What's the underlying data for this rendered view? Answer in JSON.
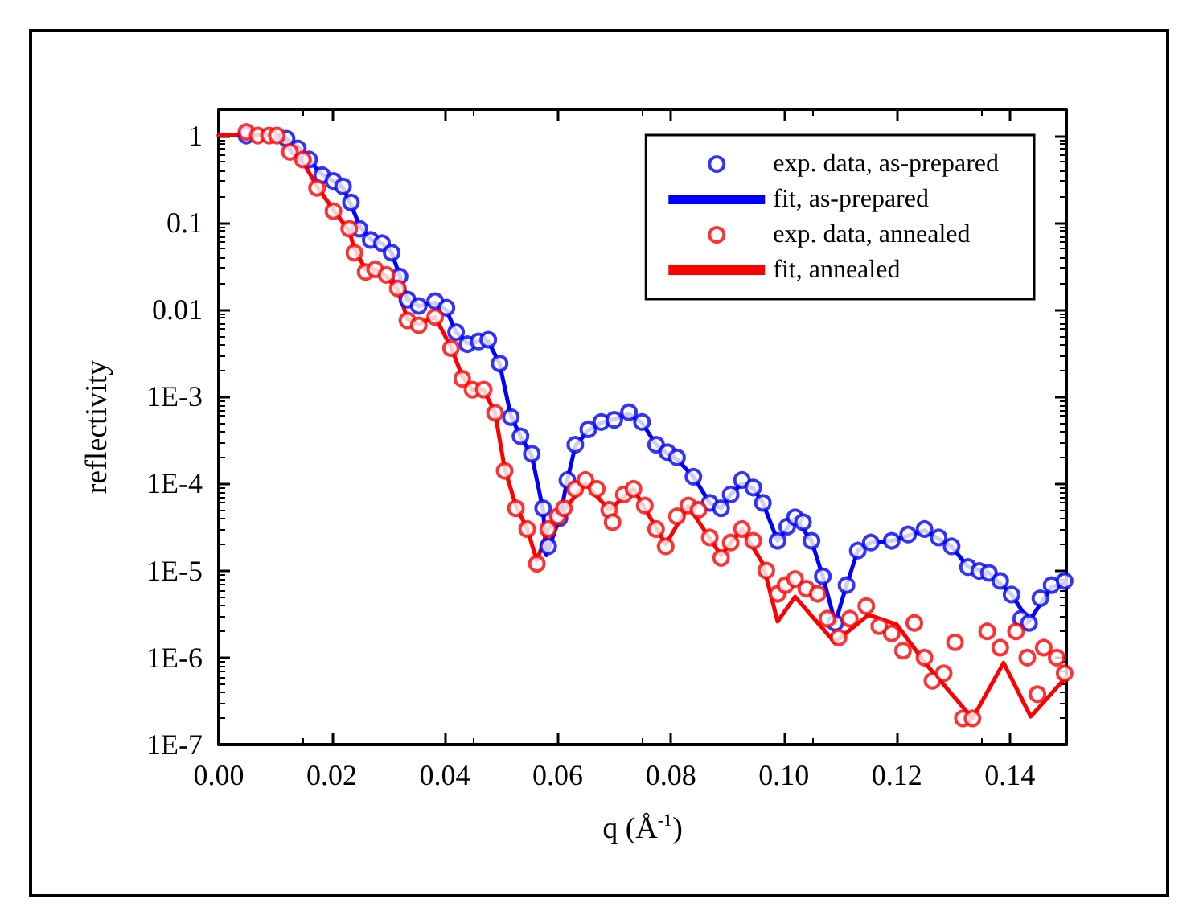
{
  "chart_data": {
    "type": "scatter",
    "xlabel": "q (Å$^{-1}$)",
    "ylabel": "reflectivity",
    "log": "y",
    "legend": "top right",
    "grid": false,
    "xlim": [
      0,
      0.15
    ],
    "xticks": [
      {
        "value": 0,
        "label": "0.00"
      },
      {
        "value": 0.02,
        "label": "0.02"
      },
      {
        "value": 0.04,
        "label": "0.04"
      },
      {
        "value": 0.06,
        "label": "0.06"
      },
      {
        "value": 0.08,
        "label": "0.08"
      },
      {
        "value": 0.1,
        "label": "0.10"
      },
      {
        "value": 0.12,
        "label": "0.12"
      },
      {
        "value": 0.14,
        "label": "0.14"
      }
    ],
    "ylim": [
      1e-07,
      2
    ],
    "yticks": [
      {
        "value": 1,
        "label": "1"
      },
      {
        "value": 0.1,
        "label": "0.1"
      },
      {
        "value": 0.01,
        "label": "0.01"
      },
      {
        "value": 0.001,
        "label": "1E-3"
      },
      {
        "value": 0.0001,
        "label": "1E-4"
      },
      {
        "value": 1e-05,
        "label": "1E-5"
      },
      {
        "value": 1e-06,
        "label": "1E-6"
      },
      {
        "value": 1e-07,
        "label": "1E-7"
      }
    ],
    "series": [
      {
        "name": "exp. data, as-prepared",
        "marker": "circle",
        "color": "#0000ff",
        "x": [
          0.0049,
          0.0083,
          0.012,
          0.014,
          0.016,
          0.0183,
          0.0203,
          0.022,
          0.0234,
          0.0249,
          0.0269,
          0.0289,
          0.0306,
          0.032,
          0.0334,
          0.0354,
          0.0383,
          0.0403,
          0.042,
          0.044,
          0.046,
          0.0477,
          0.0497,
          0.0517,
          0.0534,
          0.0554,
          0.0574,
          0.0583,
          0.0603,
          0.0617,
          0.0631,
          0.0654,
          0.0677,
          0.07,
          0.0726,
          0.0749,
          0.0774,
          0.0794,
          0.0811,
          0.084,
          0.0869,
          0.0889,
          0.0906,
          0.0926,
          0.0946,
          0.0963,
          0.0989,
          0.1006,
          0.102,
          0.1034,
          0.1049,
          0.1069,
          0.1091,
          0.1111,
          0.1131,
          0.1154,
          0.1191,
          0.122,
          0.1249,
          0.1274,
          0.1297,
          0.1326,
          0.1346,
          0.1363,
          0.1383,
          0.1403,
          0.142,
          0.1434,
          0.1454,
          0.1474,
          0.1497
        ],
        "values": [
          1,
          null,
          0.92,
          0.71,
          0.53,
          0.35,
          0.3,
          0.26,
          0.17,
          0.085,
          0.063,
          0.058,
          0.045,
          0.024,
          0.013,
          0.011,
          0.0125,
          0.0105,
          0.0055,
          0.004,
          0.0043,
          0.0045,
          0.0024,
          0.00058,
          0.00035,
          0.00022,
          5.2e-05,
          1.9e-05,
          4e-05,
          0.00011,
          0.00028,
          0.00042,
          0.00051,
          0.00054,
          0.00066,
          0.00051,
          0.00028,
          0.00023,
          0.0002,
          0.00012,
          6e-05,
          5.2e-05,
          7.5e-05,
          0.00011,
          9e-05,
          6e-05,
          2.2e-05,
          3.2e-05,
          4.1e-05,
          3.6e-05,
          2.2e-05,
          8.6e-06,
          2.5e-06,
          6.8e-06,
          1.7e-05,
          2.1e-05,
          2.2e-05,
          2.6e-05,
          3e-05,
          2.4e-05,
          1.9e-05,
          1.1e-05,
          9.9e-06,
          9.4e-06,
          7.6e-06,
          5.3e-06,
          2.8e-06,
          2.5e-06,
          4.8e-06,
          6.8e-06,
          7.6e-06
        ]
      },
      {
        "name": "fit, as-prepared",
        "type": "line",
        "marker": "none",
        "color": "#0000ff",
        "x": [
          0,
          0.011,
          0.014,
          0.016,
          0.018,
          0.0203,
          0.022,
          0.0234,
          0.025,
          0.027,
          0.029,
          0.0306,
          0.032,
          0.0334,
          0.0354,
          0.0383,
          0.0403,
          0.042,
          0.044,
          0.046,
          0.0477,
          0.0497,
          0.0517,
          0.0534,
          0.0554,
          0.0574,
          0.058,
          0.0603,
          0.0617,
          0.0631,
          0.0654,
          0.0677,
          0.07,
          0.0726,
          0.0749,
          0.0774,
          0.0794,
          0.0811,
          0.084,
          0.0869,
          0.0889,
          0.0906,
          0.0926,
          0.0946,
          0.0963,
          0.0989,
          0.102,
          0.1049,
          0.1069,
          0.1091,
          0.1111,
          0.1131,
          0.1154,
          0.1191,
          0.1249,
          0.1297,
          0.1326,
          0.1363,
          0.1403,
          0.1434,
          0.1474,
          0.15
        ],
        "values": [
          1,
          1,
          0.75,
          0.53,
          0.37,
          0.3,
          0.25,
          0.16,
          0.09,
          0.063,
          0.057,
          0.045,
          0.025,
          0.013,
          0.011,
          0.012,
          0.0098,
          0.0055,
          0.0041,
          0.0043,
          0.0043,
          0.0024,
          0.0006,
          0.00035,
          0.00021,
          5e-05,
          1.5e-05,
          4e-05,
          0.00011,
          0.00027,
          0.00041,
          0.0005,
          0.00055,
          0.00063,
          0.0005,
          0.00028,
          0.00022,
          0.00019,
          0.00012,
          6e-05,
          5.2e-05,
          7.5e-05,
          0.0001,
          8.8e-05,
          6e-05,
          2.2e-05,
          4e-05,
          2.2e-05,
          8.6e-06,
          2.5e-06,
          6.8e-06,
          1.7e-05,
          2.1e-05,
          2.2e-05,
          2.9e-05,
          1.9e-05,
          1.1e-05,
          9.4e-06,
          5.3e-06,
          2.6e-06,
          6.5e-06,
          7.2e-06
        ]
      },
      {
        "name": "exp. data, annealed",
        "marker": "circle",
        "color": "#ff0000",
        "x": [
          0.0049,
          0.0069,
          0.0089,
          0.0103,
          0.0126,
          0.0149,
          0.0174,
          0.0203,
          0.0231,
          0.024,
          0.026,
          0.0277,
          0.0297,
          0.0317,
          0.0334,
          0.0354,
          0.0383,
          0.0411,
          0.0431,
          0.0449,
          0.0469,
          0.0489,
          0.0506,
          0.0526,
          0.0546,
          0.0563,
          0.0583,
          0.06,
          0.0611,
          0.0631,
          0.0649,
          0.0669,
          0.0691,
          0.0697,
          0.0717,
          0.0734,
          0.0754,
          0.0774,
          0.0791,
          0.0811,
          0.0831,
          0.0849,
          0.0869,
          0.0889,
          0.0906,
          0.0926,
          0.0946,
          0.0969,
          0.0989,
          0.1003,
          0.102,
          0.104,
          0.106,
          0.1077,
          0.1097,
          0.1117,
          0.1146,
          0.1169,
          0.1191,
          0.1211,
          0.1231,
          0.1249,
          0.1263,
          0.1283,
          0.1303,
          0.1317,
          0.1334,
          0.136,
          0.1383,
          0.1411,
          0.1431,
          0.1449,
          0.146,
          0.1483,
          0.1497
        ],
        "values": [
          1.1,
          1,
          1,
          1,
          0.65,
          0.53,
          0.25,
          0.135,
          0.085,
          0.045,
          0.027,
          0.029,
          0.025,
          0.0175,
          0.0075,
          0.0066,
          0.0082,
          0.0036,
          0.0016,
          0.0012,
          0.0012,
          0.00065,
          0.00014,
          5.2e-05,
          3e-05,
          1.2e-05,
          3e-05,
          4.2e-05,
          5.2e-05,
          8.7e-05,
          0.00011,
          8.7e-05,
          5e-05,
          3.6e-05,
          7.5e-05,
          8.7e-05,
          5.6e-05,
          3e-05,
          1.9e-05,
          4.2e-05,
          5.6e-05,
          5e-05,
          2.4e-05,
          1.4e-05,
          2.1e-05,
          3e-05,
          2.2e-05,
          1e-05,
          5.4e-06,
          6.8e-06,
          8e-06,
          6.2e-06,
          5.4e-06,
          2.8e-06,
          1.7e-06,
          2.8e-06,
          3.9e-06,
          2.3e-06,
          1.9e-06,
          1.2e-06,
          2.5e-06,
          1e-06,
          5.4e-07,
          6.6e-07,
          1.5e-06,
          2e-07,
          2e-07,
          2e-06,
          1.3e-06,
          2e-06,
          1e-06,
          3.8e-07,
          1.3e-06,
          1e-06,
          6.6e-07
        ]
      },
      {
        "name": "fit, annealed",
        "type": "line",
        "marker": "none",
        "color": "#ff0000",
        "x": [
          0,
          0.011,
          0.0126,
          0.0149,
          0.0174,
          0.0203,
          0.0231,
          0.024,
          0.026,
          0.0277,
          0.0297,
          0.0317,
          0.0334,
          0.0354,
          0.0383,
          0.0411,
          0.0431,
          0.0449,
          0.0469,
          0.0489,
          0.0506,
          0.0526,
          0.0546,
          0.0563,
          0.0583,
          0.0611,
          0.0649,
          0.0691,
          0.0734,
          0.0791,
          0.0831,
          0.0889,
          0.0926,
          0.0963,
          0.0989,
          0.102,
          0.109,
          0.115,
          0.12,
          0.125,
          0.1334,
          0.1389,
          0.1437,
          0.15
        ],
        "values": [
          1,
          1,
          0.68,
          0.5,
          0.26,
          0.14,
          0.08,
          0.05,
          0.029,
          0.029,
          0.024,
          0.017,
          0.0078,
          0.0068,
          0.0082,
          0.0037,
          0.0017,
          0.0012,
          0.0012,
          0.00065,
          0.00015,
          5.5e-05,
          3e-05,
          1.3e-05,
          3e-05,
          5e-05,
          0.0001,
          5e-05,
          8.7e-05,
          2e-05,
          5.5e-05,
          1.5e-05,
          3e-05,
          1.2e-05,
          2.6e-06,
          5e-06,
          1.5e-06,
          3.1e-06,
          2.4e-06,
          8.7e-07,
          2e-07,
          8.7e-07,
          2.1e-07,
          6e-07
        ]
      }
    ]
  }
}
